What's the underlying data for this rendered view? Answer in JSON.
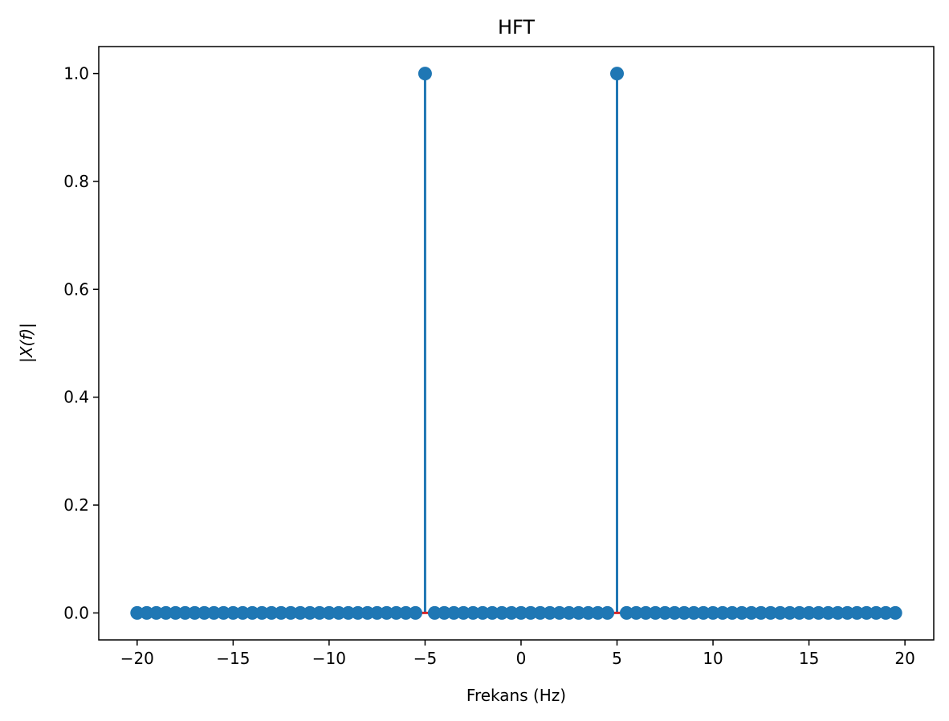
{
  "chart_data": {
    "type": "stem",
    "title": "HFT",
    "xlabel": "Frekans (Hz)",
    "ylabel": "|X(f)|",
    "xlim": [
      -22,
      21.5
    ],
    "ylim": [
      -0.05,
      1.05
    ],
    "x_ticks": [
      -20,
      -15,
      -10,
      -5,
      0,
      5,
      10,
      15,
      20
    ],
    "x_tick_labels": [
      "−20",
      "−15",
      "−10",
      "−5",
      "0",
      "5",
      "10",
      "15",
      "20"
    ],
    "y_ticks": [
      0.0,
      0.2,
      0.4,
      0.6,
      0.8,
      1.0
    ],
    "y_tick_labels": [
      "0.0",
      "0.2",
      "0.4",
      "0.6",
      "0.8",
      "1.0"
    ],
    "grid": false,
    "legend": "none",
    "x_start": -20,
    "x_step": 0.5,
    "point_count": 80,
    "nonzero_points": [
      {
        "x": -5,
        "y": 1.0
      },
      {
        "x": 5,
        "y": 1.0
      }
    ],
    "other_values": 0,
    "colors": {
      "marker": "#1f77b4",
      "stem": "#1f77b4",
      "baseline": "#d62728"
    }
  }
}
